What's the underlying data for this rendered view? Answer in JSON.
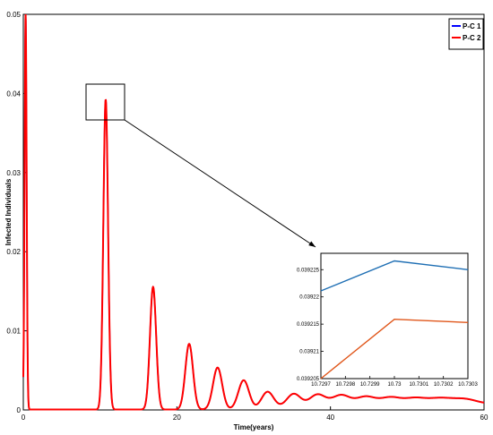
{
  "chart_data": [
    {
      "type": "line",
      "xlabel": "Time(years)",
      "ylabel": "Infected Individuals",
      "xlim": [
        0,
        60
      ],
      "ylim": [
        0,
        0.05
      ],
      "x_ticks": [
        "0",
        "20",
        "40",
        "60"
      ],
      "y_ticks": [
        "0",
        "0.01",
        "0.02",
        "0.03",
        "0.04",
        "0.05"
      ],
      "grid": false,
      "legend_position": "top-right",
      "series": [
        {
          "name": "P-C 1",
          "color": "#0000ff"
        },
        {
          "name": "P-C 2",
          "color": "#ff0000"
        }
      ],
      "peaks": [
        {
          "t": 0.3,
          "y": 0.05
        },
        {
          "t": 10.73,
          "y": 0.0392
        },
        {
          "t": 16.9,
          "y": 0.0155
        },
        {
          "t": 21.6,
          "y": 0.0083
        },
        {
          "t": 25.3,
          "y": 0.0053
        },
        {
          "t": 28.7,
          "y": 0.0037
        },
        {
          "t": 31.8,
          "y": 0.0029
        },
        {
          "t": 35.2,
          "y": 0.0024
        },
        {
          "t": 38.3,
          "y": 0.0021
        },
        {
          "t": 41.4,
          "y": 0.0019
        },
        {
          "t": 44.6,
          "y": 0.0017
        },
        {
          "t": 47.8,
          "y": 0.0016
        },
        {
          "t": 51.0,
          "y": 0.0015
        },
        {
          "t": 54.2,
          "y": 0.00145
        },
        {
          "t": 57.4,
          "y": 0.0014
        }
      ],
      "baseline": 5e-05,
      "equilibrium": 0.0013
    },
    {
      "type": "line",
      "title": "",
      "xlim": [
        10.7297,
        10.7303
      ],
      "ylim": [
        0.039205,
        0.039228
      ],
      "x_ticks": [
        "10.7297",
        "10.7298",
        "10.7299",
        "10.73",
        "10.7301",
        "10.7302",
        "10.7303"
      ],
      "y_ticks": [
        "0.039205",
        "0.03921",
        "0.039215",
        "0.03922",
        "0.039225"
      ],
      "series": [
        {
          "name": "P-C 1",
          "color": "#1f6fb4",
          "x": [
            10.7297,
            10.73,
            10.7303
          ],
          "y": [
            0.0392211,
            0.0392266,
            0.039225
          ]
        },
        {
          "name": "P-C 2",
          "color": "#e0561a",
          "x": [
            10.7297,
            10.73,
            10.7303
          ],
          "y": [
            0.039205,
            0.0392159,
            0.0392153
          ]
        }
      ]
    }
  ]
}
